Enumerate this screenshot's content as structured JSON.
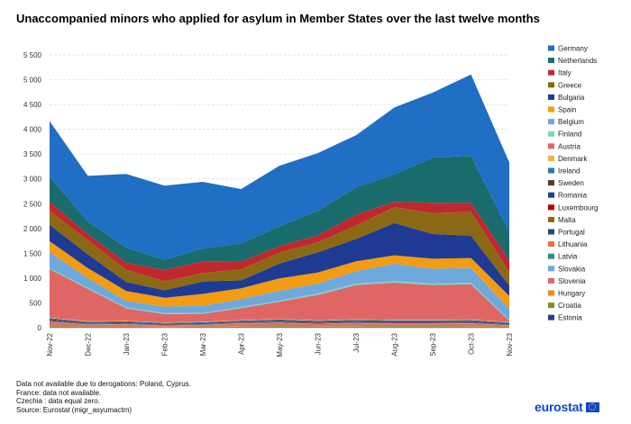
{
  "title": "Unaccompanied minors who applied for asylum in Member States over the last twelve months",
  "notes": [
    "Data not available due to derogations: Poland, Cyprus.",
    "France: data not available.",
    "Czechia : data equal zero.",
    "Source: Eurostat (migr_asyumactm)"
  ],
  "logo_text": "eurostat",
  "chart_data": {
    "type": "area",
    "stacked": true,
    "title": "Unaccompanied minors who applied for asylum in Member States over the last twelve months",
    "categories": [
      "Nov-22",
      "Dec-22",
      "Jan-23",
      "Feb-23",
      "Mar-23",
      "Apr-23",
      "May-23",
      "Jun-23",
      "Jul-23",
      "Aug-23",
      "Sep-23",
      "Oct-23",
      "Nov-23"
    ],
    "ylim": [
      0,
      5500
    ],
    "yticks": [
      0,
      500,
      1000,
      1500,
      2000,
      2500,
      3000,
      3500,
      4000,
      4500,
      5000,
      5500
    ],
    "ytick_labels": [
      "0",
      "500",
      "1 000",
      "1 500",
      "2 000",
      "2 500",
      "3 000",
      "3 500",
      "4 000",
      "4 500",
      "5 000",
      "5 500"
    ],
    "grid": true,
    "legend_position": "right",
    "series": [
      {
        "name": "Estonia",
        "color": "#2a3f8f",
        "values": [
          5,
          5,
          5,
          5,
          5,
          5,
          5,
          5,
          5,
          5,
          5,
          5,
          5
        ]
      },
      {
        "name": "Croatia",
        "color": "#8a8a2a",
        "values": [
          30,
          15,
          15,
          10,
          15,
          20,
          25,
          20,
          20,
          25,
          25,
          20,
          15
        ]
      },
      {
        "name": "Hungary",
        "color": "#f08a1c",
        "values": [
          5,
          5,
          5,
          5,
          5,
          5,
          5,
          5,
          5,
          5,
          5,
          5,
          5
        ]
      },
      {
        "name": "Slovenia",
        "color": "#e06a6a",
        "values": [
          70,
          30,
          40,
          15,
          25,
          50,
          60,
          40,
          60,
          40,
          40,
          50,
          20
        ]
      },
      {
        "name": "Slovakia",
        "color": "#6fa8dc",
        "values": [
          10,
          5,
          5,
          5,
          5,
          5,
          5,
          5,
          5,
          5,
          5,
          5,
          5
        ]
      },
      {
        "name": "Latvia",
        "color": "#2a9090",
        "values": [
          0,
          0,
          0,
          0,
          0,
          0,
          0,
          0,
          0,
          0,
          0,
          0,
          0
        ]
      },
      {
        "name": "Lithuania",
        "color": "#e8734a",
        "values": [
          5,
          5,
          5,
          5,
          5,
          5,
          5,
          5,
          5,
          5,
          5,
          5,
          5
        ]
      },
      {
        "name": "Portugal",
        "color": "#1f4e79",
        "values": [
          10,
          10,
          10,
          5,
          5,
          10,
          10,
          10,
          10,
          10,
          10,
          10,
          10
        ]
      },
      {
        "name": "Malta",
        "color": "#8b6914",
        "values": [
          0,
          0,
          0,
          0,
          0,
          0,
          0,
          0,
          0,
          0,
          0,
          0,
          0
        ]
      },
      {
        "name": "Luxembourg",
        "color": "#c00000",
        "values": [
          10,
          5,
          5,
          5,
          5,
          5,
          5,
          5,
          5,
          5,
          5,
          5,
          5
        ]
      },
      {
        "name": "Romania",
        "color": "#1c4587",
        "values": [
          10,
          5,
          5,
          5,
          5,
          5,
          5,
          5,
          5,
          10,
          10,
          10,
          5
        ]
      },
      {
        "name": "Sweden",
        "color": "#5b3a1a",
        "values": [
          20,
          15,
          15,
          15,
          15,
          15,
          20,
          20,
          20,
          20,
          20,
          20,
          15
        ]
      },
      {
        "name": "Ireland",
        "color": "#2e75b6",
        "values": [
          20,
          20,
          20,
          20,
          20,
          20,
          20,
          20,
          20,
          20,
          20,
          20,
          15
        ]
      },
      {
        "name": "Denmark",
        "color": "#f5b041",
        "values": [
          10,
          10,
          10,
          10,
          10,
          10,
          10,
          10,
          10,
          10,
          10,
          10,
          5
        ]
      },
      {
        "name": "Austria",
        "color": "#e06666",
        "values": [
          980,
          650,
          250,
          170,
          160,
          240,
          350,
          510,
          690,
          750,
          700,
          710,
          30
        ]
      },
      {
        "name": "Finland",
        "color": "#76d7c4",
        "values": [
          20,
          20,
          20,
          20,
          20,
          20,
          20,
          30,
          30,
          30,
          30,
          30,
          20
        ]
      },
      {
        "name": "Belgium",
        "color": "#6fa8dc",
        "values": [
          320,
          200,
          130,
          130,
          140,
          160,
          200,
          200,
          250,
          350,
          300,
          300,
          220
        ]
      },
      {
        "name": "Spain",
        "color": "#f39c12",
        "values": [
          220,
          200,
          200,
          180,
          240,
          220,
          250,
          220,
          200,
          170,
          200,
          200,
          260
        ]
      },
      {
        "name": "Bulgaria",
        "color": "#1f3a93",
        "values": [
          330,
          280,
          180,
          150,
          250,
          160,
          300,
          410,
          450,
          650,
          500,
          450,
          210
        ]
      },
      {
        "name": "Greece",
        "color": "#8b6914",
        "values": [
          280,
          280,
          250,
          180,
          170,
          220,
          220,
          200,
          270,
          320,
          420,
          480,
          270
        ]
      },
      {
        "name": "Italy",
        "color": "#c0282f",
        "values": [
          180,
          130,
          140,
          230,
          240,
          160,
          130,
          140,
          220,
          110,
          210,
          180,
          240
        ]
      },
      {
        "name": "Netherlands",
        "color": "#1a6b6b",
        "values": [
          510,
          250,
          300,
          200,
          260,
          360,
          400,
          490,
          550,
          550,
          910,
          950,
          570
        ]
      },
      {
        "name": "Germany",
        "color": "#1f6fc5",
        "values": [
          1120,
          920,
          1490,
          1500,
          1340,
          1100,
          1220,
          1170,
          1050,
          1350,
          1310,
          1640,
          1400
        ]
      }
    ]
  }
}
